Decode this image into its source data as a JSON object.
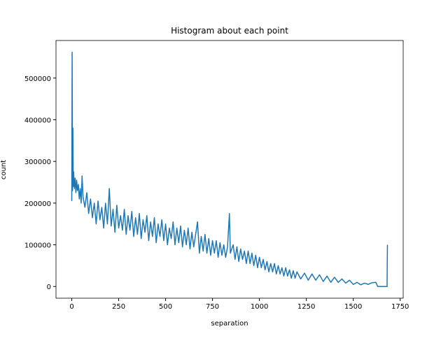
{
  "chart_data": {
    "type": "line",
    "title": "Histogram about each point",
    "x_label": "separation",
    "y_label": "count",
    "xlim": [
      -84,
      1766
    ],
    "ylim": [
      -28100,
      590100
    ],
    "xticks": [
      0,
      250,
      500,
      750,
      1000,
      1250,
      1500,
      1750
    ],
    "yticks": [
      0,
      100000,
      200000,
      300000,
      400000,
      500000
    ],
    "color": "#1f77b4",
    "x": [
      0,
      2,
      4,
      6,
      8,
      10,
      14,
      18,
      22,
      26,
      30,
      35,
      40,
      45,
      50,
      55,
      60,
      70,
      80,
      90,
      100,
      110,
      120,
      130,
      140,
      150,
      160,
      170,
      180,
      190,
      200,
      210,
      220,
      230,
      240,
      250,
      260,
      270,
      280,
      290,
      300,
      310,
      320,
      330,
      340,
      350,
      360,
      370,
      380,
      390,
      400,
      410,
      420,
      430,
      440,
      450,
      460,
      470,
      480,
      490,
      500,
      510,
      520,
      530,
      540,
      550,
      560,
      570,
      580,
      590,
      600,
      610,
      620,
      630,
      640,
      650,
      660,
      670,
      680,
      690,
      700,
      710,
      720,
      730,
      740,
      750,
      760,
      770,
      780,
      790,
      800,
      810,
      820,
      830,
      840,
      845,
      860,
      870,
      880,
      890,
      900,
      910,
      920,
      930,
      940,
      950,
      960,
      970,
      980,
      990,
      1000,
      1010,
      1020,
      1030,
      1040,
      1050,
      1060,
      1070,
      1080,
      1090,
      1100,
      1110,
      1120,
      1130,
      1140,
      1150,
      1160,
      1170,
      1180,
      1190,
      1200,
      1220,
      1240,
      1260,
      1280,
      1300,
      1320,
      1340,
      1360,
      1380,
      1400,
      1420,
      1440,
      1460,
      1480,
      1500,
      1520,
      1540,
      1560,
      1580,
      1600,
      1620,
      1630,
      1680,
      1682
    ],
    "values": [
      205000,
      562000,
      230000,
      380000,
      240000,
      275000,
      235000,
      260000,
      225000,
      255000,
      230000,
      245000,
      210000,
      235000,
      200000,
      265000,
      215000,
      190000,
      225000,
      175000,
      210000,
      165000,
      200000,
      150000,
      205000,
      160000,
      190000,
      140000,
      200000,
      150000,
      235000,
      145000,
      185000,
      130000,
      195000,
      140000,
      170000,
      135000,
      185000,
      125000,
      170000,
      135000,
      180000,
      120000,
      165000,
      125000,
      175000,
      115000,
      160000,
      130000,
      170000,
      110000,
      155000,
      120000,
      165000,
      105000,
      150000,
      120000,
      160000,
      110000,
      150000,
      100000,
      140000,
      115000,
      155000,
      100000,
      140000,
      105000,
      145000,
      95000,
      135000,
      100000,
      140000,
      90000,
      130000,
      95000,
      125000,
      155000,
      80000,
      120000,
      85000,
      125000,
      80000,
      115000,
      75000,
      110000,
      80000,
      110000,
      70000,
      105000,
      75000,
      100000,
      70000,
      95000,
      175000,
      80000,
      100000,
      65000,
      95000,
      60000,
      90000,
      65000,
      85000,
      55000,
      85000,
      55000,
      80000,
      50000,
      75000,
      45000,
      70000,
      45000,
      65000,
      40000,
      60000,
      35000,
      55000,
      35000,
      55000,
      30000,
      50000,
      30000,
      45000,
      25000,
      45000,
      25000,
      40000,
      20000,
      38000,
      20000,
      35000,
      18000,
      32000,
      15000,
      30000,
      15000,
      28000,
      12000,
      25000,
      10000,
      22000,
      10000,
      18000,
      8000,
      15000,
      5000,
      10000,
      4000,
      8000,
      5000,
      9000,
      10000,
      0,
      0,
      100000
    ]
  }
}
